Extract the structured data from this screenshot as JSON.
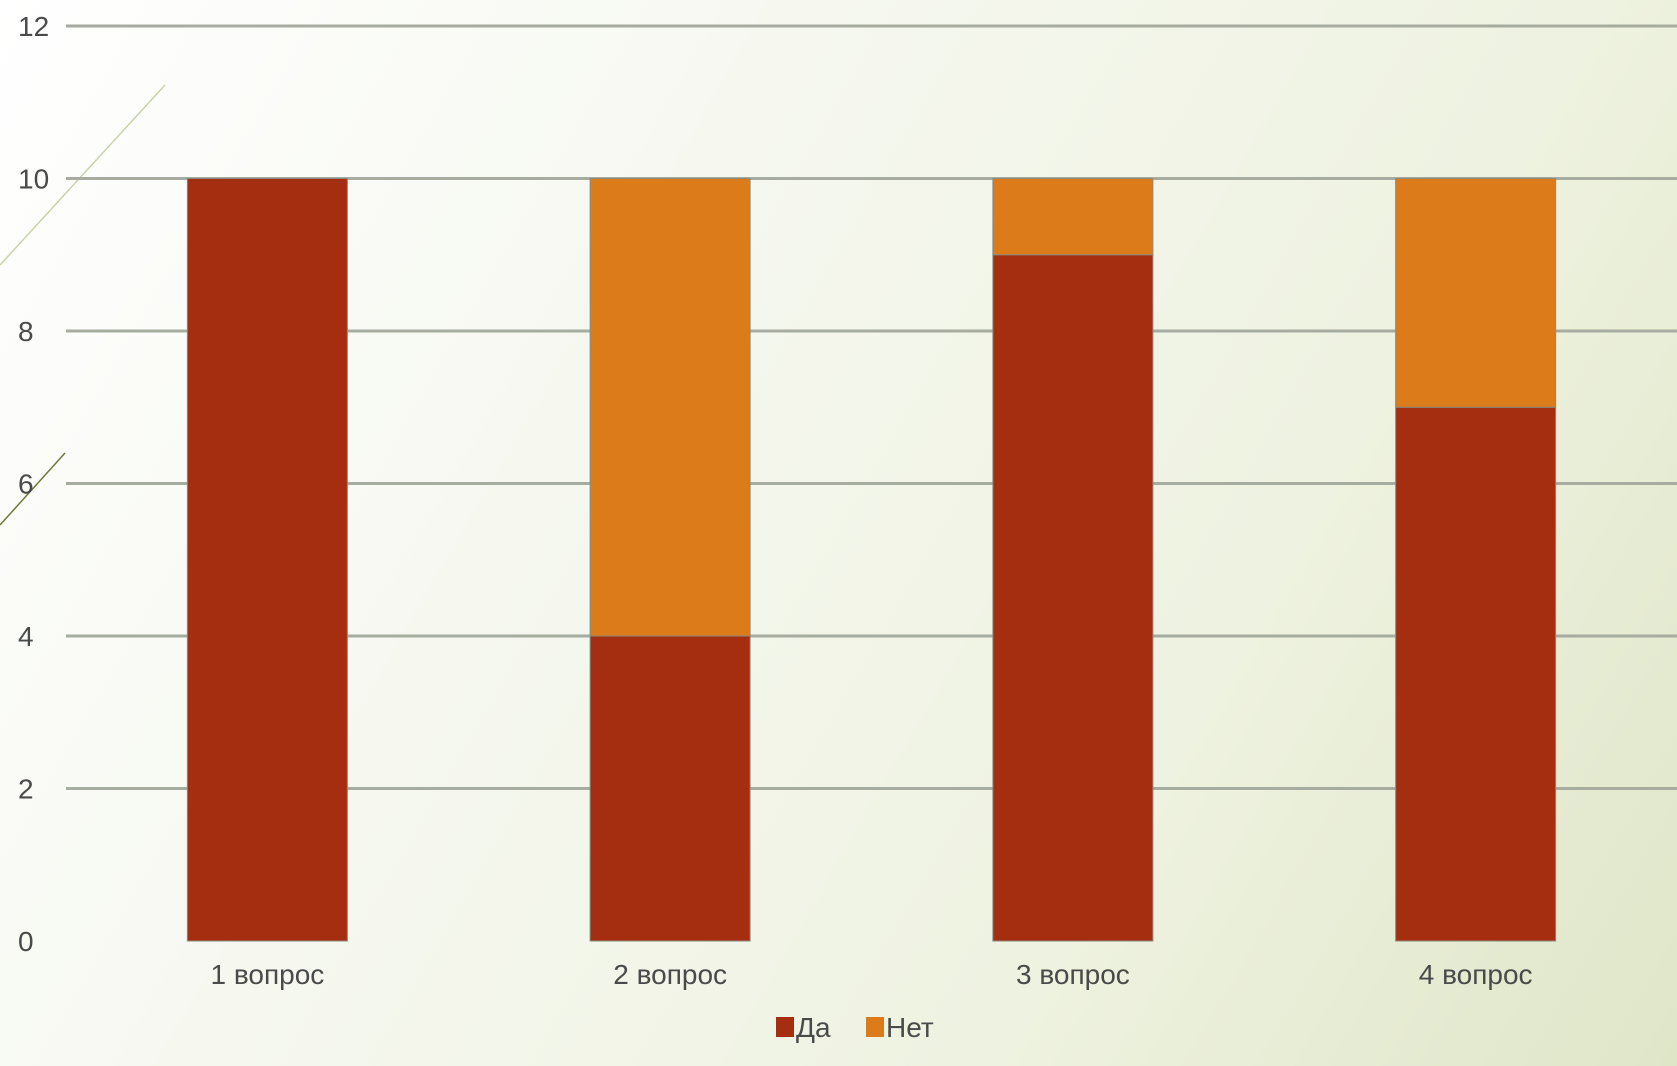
{
  "chart_data": {
    "type": "bar",
    "stacked": true,
    "categories": [
      "1 вопрос",
      "2 вопрос",
      "3 вопрос",
      "4 вопрос"
    ],
    "series": [
      {
        "name": "Да",
        "values": [
          10,
          4,
          9,
          7
        ],
        "color": "#a52e10"
      },
      {
        "name": "Нет",
        "values": [
          0,
          6,
          1,
          3
        ],
        "color": "#dc7b19"
      }
    ],
    "yticks": [
      "0",
      "2",
      "4",
      "6",
      "8",
      "10",
      "12"
    ],
    "ylim": [
      0,
      12
    ],
    "grid": true,
    "legend": "bottom-center",
    "xlabel": "",
    "ylabel": "",
    "title": ""
  }
}
